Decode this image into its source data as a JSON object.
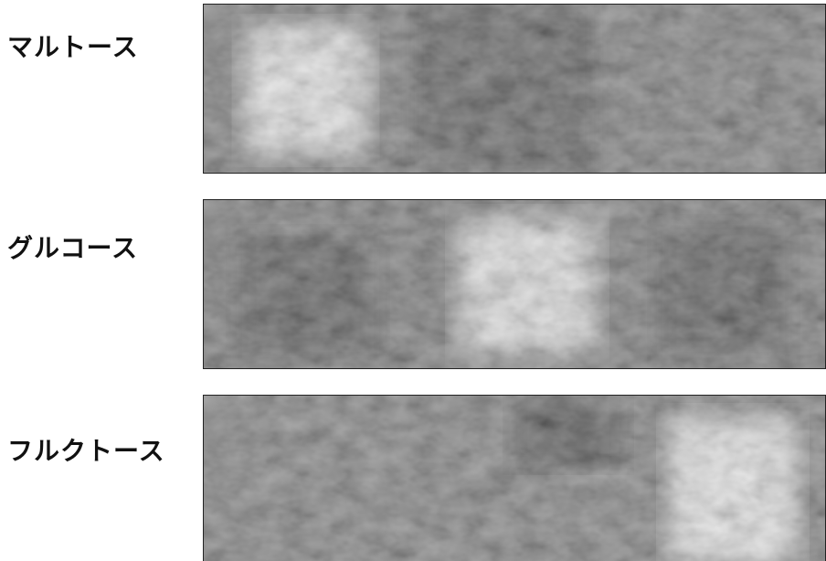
{
  "panels": [
    {
      "label": "マルトース"
    },
    {
      "label": "グルコース"
    },
    {
      "label": "フルクトース"
    }
  ]
}
